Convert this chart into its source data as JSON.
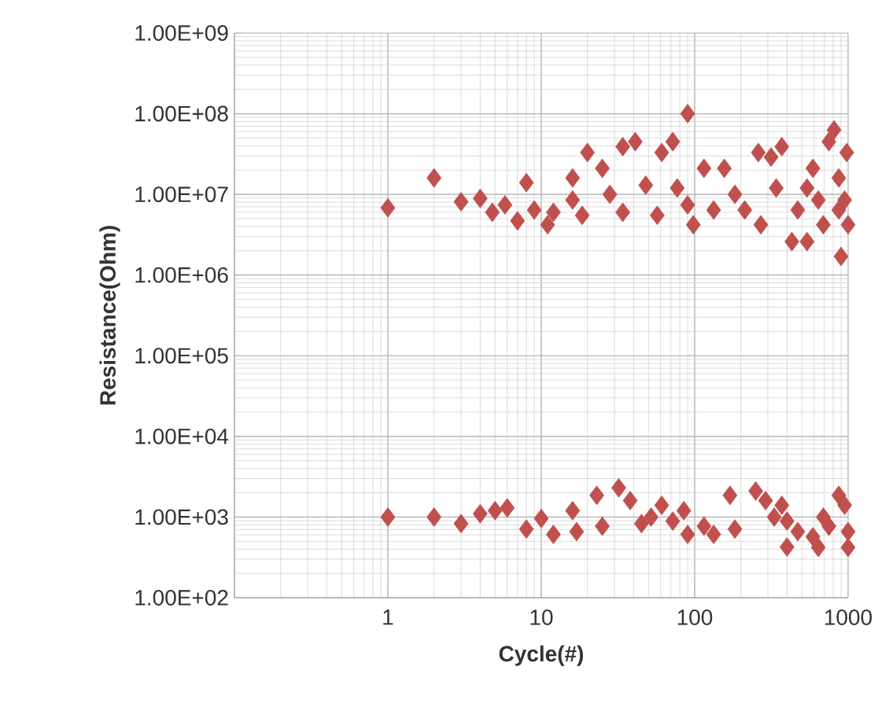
{
  "chart_data": {
    "type": "scatter",
    "xlabel": "Cycle(#)",
    "ylabel": "Resistance(Ohm)",
    "log": "xy",
    "grid": true,
    "marker": "diamond",
    "xlim": [
      0.1,
      1000
    ],
    "ylim": [
      100,
      1000000000
    ],
    "xticks": [
      {
        "value": 0.1,
        "label": null
      },
      1,
      10,
      100,
      1000
    ],
    "yticks": [
      {
        "value": 100,
        "label": "1.00E+02"
      },
      {
        "value": 1000,
        "label": "1.00E+03"
      },
      {
        "value": 10000,
        "label": "1.00E+04"
      },
      {
        "value": 100000,
        "label": "1.00E+05"
      },
      {
        "value": 1000000,
        "label": "1.00E+06"
      },
      {
        "value": 10000000,
        "label": "1.00E+07"
      },
      {
        "value": 100000000,
        "label": "1.00E+08"
      },
      {
        "value": 1000000000,
        "label": "1.00E+09"
      }
    ],
    "series": [
      {
        "color": "#c0504d",
        "x": [
          1,
          2,
          3,
          4,
          4.8,
          5.8,
          7,
          8,
          9,
          11,
          12,
          16,
          18.5,
          20,
          16,
          25,
          28,
          34,
          34,
          41,
          48,
          57,
          61,
          72,
          77,
          90,
          90,
          98,
          115,
          133,
          156,
          183,
          212,
          270,
          260,
          315,
          370,
          340,
          430,
          470,
          540,
          590,
          640,
          690,
          750,
          810,
          870,
          900,
          950,
          980,
          1000,
          870,
          540,
          1,
          2,
          3,
          4,
          5,
          6,
          8,
          10,
          12,
          16,
          17,
          23,
          25,
          32,
          38,
          45,
          52,
          61,
          72,
          85,
          90,
          115,
          133,
          170,
          183,
          250,
          290,
          330,
          370,
          400,
          470,
          590,
          640,
          690,
          870,
          950,
          1000,
          1000,
          750,
          400
        ],
        "values": [
          6800000,
          16000000,
          8100000,
          8900000,
          6000000,
          7400000,
          4700000,
          14000000,
          6400000,
          4200000,
          6000000,
          16000000,
          5500000,
          33000000,
          8500000,
          21000000,
          10000000,
          6000000,
          39000000,
          45000000,
          13000000,
          5500000,
          33000000,
          45000000,
          12000000,
          100000000,
          7400000,
          4200000,
          21000000,
          6400000,
          21000000,
          10000000,
          6400000,
          4200000,
          33000000,
          29000000,
          39000000,
          12000000,
          2600000,
          6400000,
          2600000,
          21000000,
          8500000,
          4200000,
          45000000,
          63000000,
          16000000,
          1700000,
          8500000,
          33000000,
          4200000,
          6400000,
          12000000,
          1000,
          1000,
          830,
          1100,
          1200,
          1300,
          710,
          960,
          610,
          1200,
          660,
          1860,
          770,
          2300,
          1600,
          830,
          1000,
          1400,
          890,
          1200,
          610,
          770,
          610,
          1860,
          710,
          2100,
          1600,
          1000,
          1400,
          425,
          660,
          570,
          420,
          1000,
          1860,
          1400,
          420,
          660,
          770,
          890
        ]
      }
    ]
  }
}
